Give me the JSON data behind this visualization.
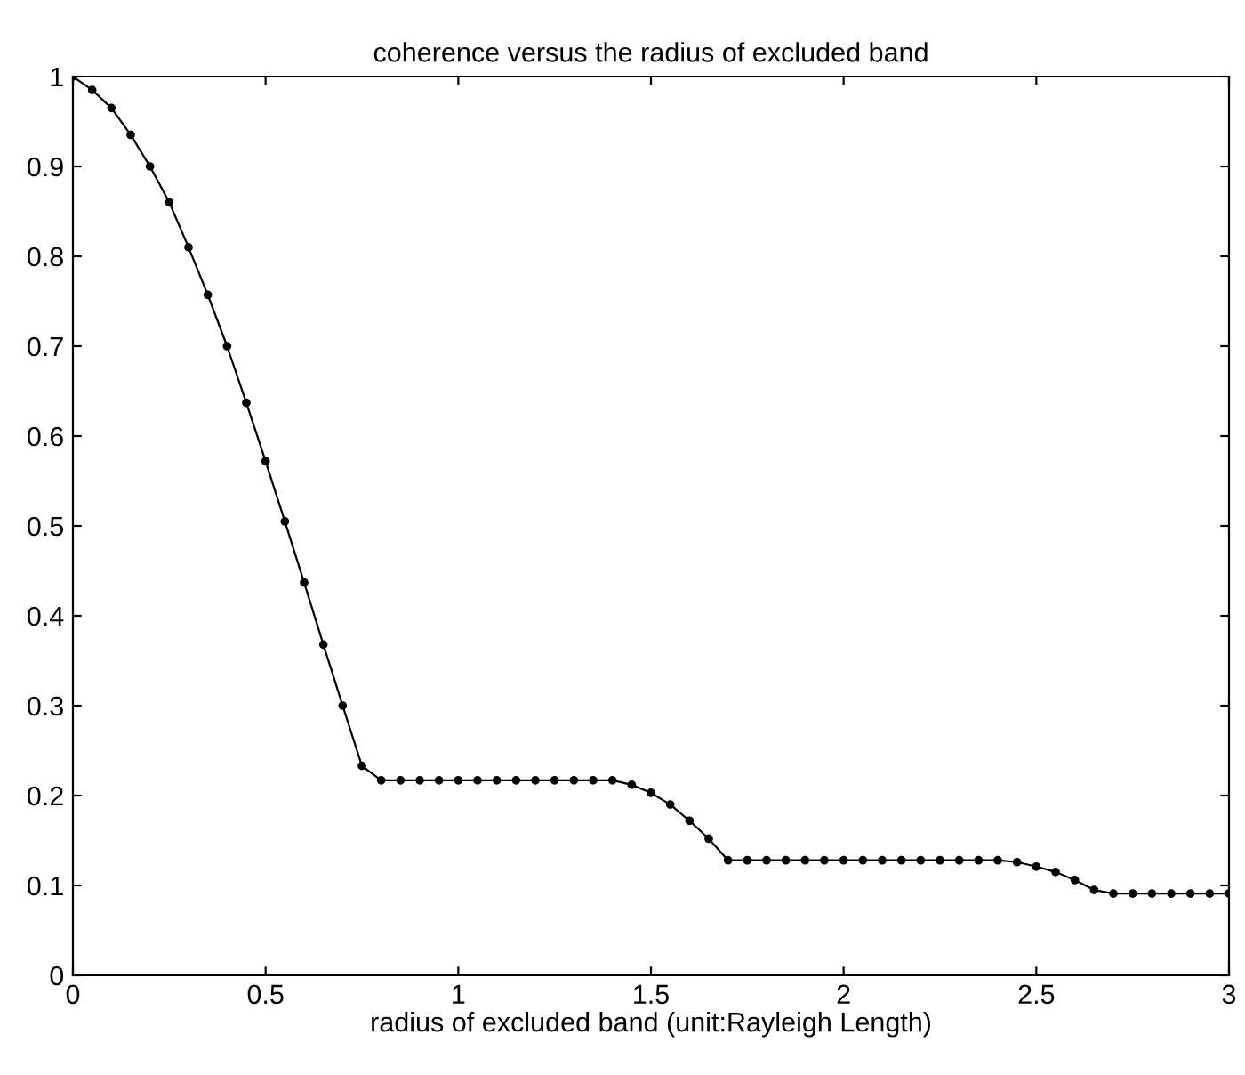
{
  "chart_data": {
    "type": "line",
    "title": "coherence versus the radius of excluded band",
    "xlabel": "radius of excluded band (unit:Rayleigh Length)",
    "x": [
      0,
      0.05,
      0.1,
      0.15,
      0.2,
      0.25,
      0.3,
      0.35,
      0.4,
      0.45,
      0.5,
      0.55,
      0.6,
      0.65,
      0.7,
      0.75,
      0.8,
      0.85,
      0.9,
      0.95,
      1,
      1.05,
      1.1,
      1.15,
      1.2,
      1.25,
      1.3,
      1.35,
      1.4,
      1.45,
      1.5,
      1.55,
      1.6,
      1.65,
      1.7,
      1.75,
      1.8,
      1.85,
      1.9,
      1.95,
      2,
      2.05,
      2.1,
      2.15,
      2.2,
      2.25,
      2.3,
      2.35,
      2.4,
      2.45,
      2.5,
      2.55,
      2.6,
      2.65,
      2.7,
      2.75,
      2.8,
      2.85,
      2.9,
      2.95,
      3
    ],
    "series": [
      {
        "color": "#000000",
        "values": [
          1.0,
          0.985,
          0.965,
          0.935,
          0.9,
          0.86,
          0.81,
          0.757,
          0.7,
          0.637,
          0.572,
          0.505,
          0.437,
          0.368,
          0.3,
          0.233,
          0.217,
          0.217,
          0.217,
          0.217,
          0.217,
          0.217,
          0.217,
          0.217,
          0.217,
          0.217,
          0.217,
          0.217,
          0.217,
          0.212,
          0.203,
          0.19,
          0.172,
          0.152,
          0.128,
          0.128,
          0.128,
          0.128,
          0.128,
          0.128,
          0.128,
          0.128,
          0.128,
          0.128,
          0.128,
          0.128,
          0.128,
          0.128,
          0.128,
          0.126,
          0.121,
          0.115,
          0.106,
          0.095,
          0.091,
          0.091,
          0.091,
          0.091,
          0.091,
          0.091,
          0.091
        ]
      }
    ],
    "marker": "circle",
    "line_style": "solid",
    "xlim": [
      0,
      3
    ],
    "xticks": [
      0,
      0.5,
      1,
      1.5,
      2,
      2.5,
      3
    ],
    "ylim": [
      0,
      1
    ],
    "yticks": [
      0,
      0.1,
      0.2,
      0.3,
      0.4,
      0.5,
      0.6,
      0.7,
      0.8,
      0.9,
      1
    ]
  }
}
